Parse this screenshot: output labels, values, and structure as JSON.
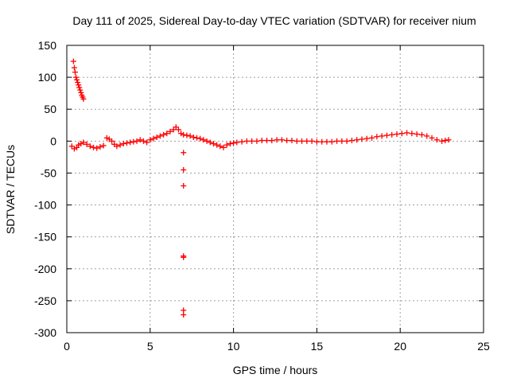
{
  "chart_data": {
    "type": "scatter",
    "title": "Day 111 of 2025, Sidereal Day-to-day VTEC variation (SDTVAR) for receiver nium",
    "xlabel": "GPS time / hours",
    "ylabel": "SDTVAR / TECUs",
    "xlim": [
      0,
      25
    ],
    "ylim": [
      -300,
      150
    ],
    "xticks": [
      0,
      5,
      10,
      15,
      20,
      25
    ],
    "yticks": [
      -300,
      -250,
      -200,
      -150,
      -100,
      -50,
      0,
      50,
      100,
      150
    ],
    "xtick_labels": [
      "0",
      "5",
      "10",
      "15",
      "20",
      "25"
    ],
    "ytick_labels": [
      "-300",
      "-250",
      "-200",
      "-150",
      "-100",
      "-50",
      "0",
      "50",
      "100",
      "150"
    ],
    "grid": true,
    "marker": "+",
    "color": "#ff0000",
    "series": [
      {
        "name": "SDTVAR",
        "x": [
          0.4,
          0.45,
          0.5,
          0.55,
          0.6,
          0.65,
          0.7,
          0.75,
          0.8,
          0.85,
          0.9,
          0.95,
          1.0,
          0.3,
          0.45,
          0.6,
          0.7,
          0.85,
          1.0,
          1.2,
          1.4,
          1.6,
          1.8,
          2.0,
          2.2,
          2.4,
          2.55,
          2.7,
          2.85,
          3.0,
          3.2,
          3.4,
          3.6,
          3.8,
          4.0,
          4.2,
          4.4,
          4.6,
          4.8,
          5.0,
          5.2,
          5.4,
          5.6,
          5.8,
          6.0,
          6.2,
          6.4,
          6.55,
          6.7,
          6.85,
          7.0,
          7.2,
          7.4,
          7.6,
          7.8,
          8.0,
          8.2,
          8.4,
          8.6,
          8.8,
          9.0,
          9.2,
          9.4,
          9.6,
          9.8,
          10.0,
          10.2,
          10.5,
          10.8,
          11.1,
          11.4,
          11.7,
          12.0,
          12.3,
          12.6,
          12.9,
          13.2,
          13.5,
          13.8,
          14.1,
          14.4,
          14.7,
          15.0,
          15.3,
          15.6,
          15.9,
          16.2,
          16.5,
          16.8,
          17.1,
          17.4,
          17.7,
          18.0,
          18.3,
          18.6,
          18.9,
          19.2,
          19.5,
          19.8,
          20.1,
          20.4,
          20.7,
          21.0,
          21.3,
          21.6,
          21.9,
          22.2,
          22.5,
          22.7,
          22.9,
          7.0,
          7.0,
          7.0,
          7.0,
          7.0,
          7.0,
          7.0
        ],
        "y": [
          125,
          115,
          108,
          100,
          96,
          92,
          88,
          84,
          80,
          76,
          72,
          69,
          66,
          -8,
          -12,
          -10,
          -6,
          -4,
          -2,
          -5,
          -8,
          -10,
          -11,
          -9,
          -7,
          5,
          3,
          0,
          -5,
          -8,
          -6,
          -4,
          -3,
          -2,
          -1,
          0,
          2,
          0,
          -2,
          2,
          4,
          6,
          8,
          10,
          12,
          15,
          18,
          22,
          18,
          12,
          10,
          9,
          8,
          6,
          5,
          4,
          2,
          0,
          -2,
          -4,
          -6,
          -8,
          -10,
          -6,
          -4,
          -3,
          -2,
          -1,
          0,
          0,
          0,
          1,
          1,
          1,
          2,
          2,
          1,
          1,
          0,
          0,
          0,
          0,
          -1,
          -1,
          -1,
          -1,
          0,
          0,
          0,
          1,
          2,
          3,
          4,
          5,
          7,
          8,
          9,
          10,
          11,
          12,
          13,
          12,
          11,
          10,
          8,
          5,
          2,
          0,
          1,
          2,
          -18,
          -45,
          -70,
          -180,
          -182,
          -265,
          -272
        ]
      }
    ]
  }
}
